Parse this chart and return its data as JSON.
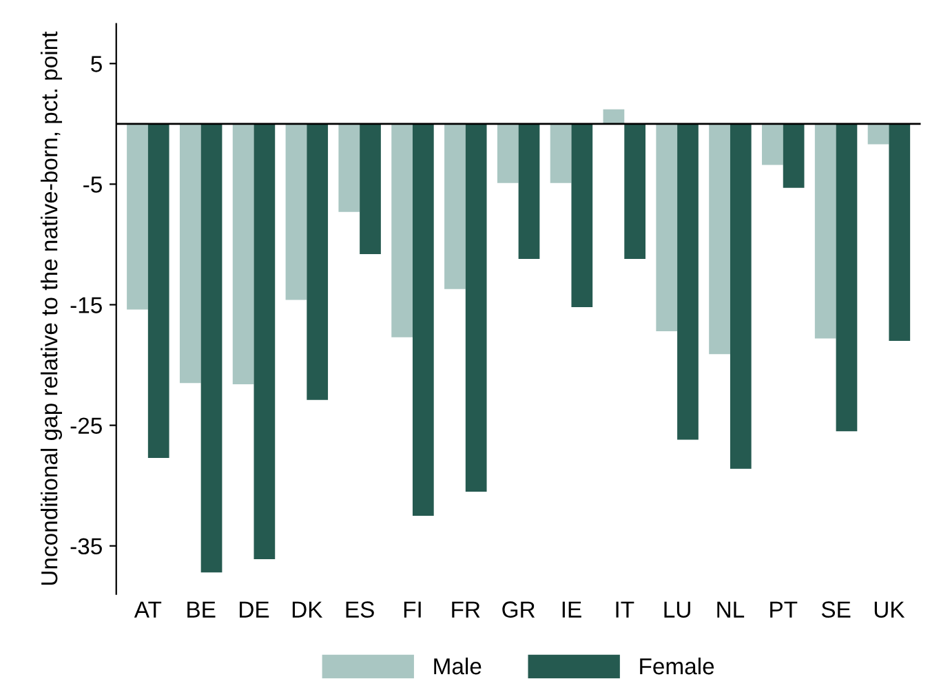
{
  "chart_data": {
    "type": "bar",
    "ylabel": "Unconditional gap relative to the native-born, pct. point",
    "categories": [
      "AT",
      "BE",
      "DE",
      "DK",
      "ES",
      "FI",
      "FR",
      "GR",
      "IE",
      "IT",
      "LU",
      "NL",
      "PT",
      "SE",
      "UK"
    ],
    "series": [
      {
        "name": "Male",
        "color": "#a9c6c2",
        "values": [
          -15.4,
          -21.5,
          -21.6,
          -14.6,
          -7.3,
          -17.7,
          -13.7,
          -4.9,
          -4.9,
          1.2,
          -17.2,
          -19.1,
          -3.4,
          -17.8,
          -1.7
        ]
      },
      {
        "name": "Female",
        "color": "#255a50",
        "values": [
          -27.7,
          -37.2,
          -36.1,
          -22.9,
          -10.8,
          -32.5,
          -30.5,
          -11.2,
          -15.2,
          -11.2,
          -26.2,
          -28.6,
          -5.3,
          -25.5,
          -18.0
        ]
      }
    ],
    "ylim": [
      -39,
      8.3
    ],
    "yticks": [
      5,
      -5,
      -15,
      -25,
      -35
    ],
    "ref_lines": [
      {
        "axis": "y",
        "value": 0,
        "color": "#000000"
      }
    ],
    "grid": false,
    "legend": "bottom"
  }
}
